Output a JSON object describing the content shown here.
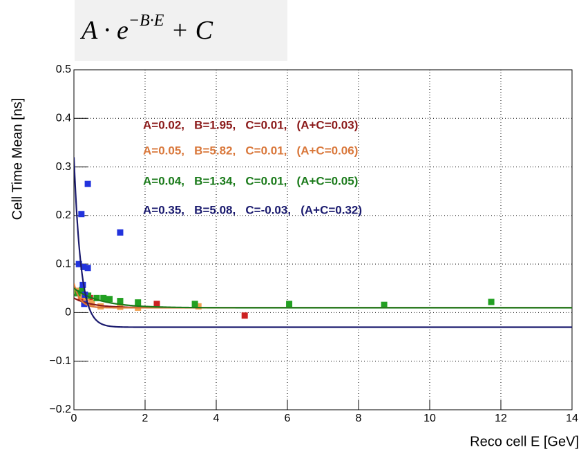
{
  "chart_data": {
    "type": "scatter",
    "formula": {
      "base": "A · e",
      "exponent": "−B·E",
      "tail": "+ C"
    },
    "xlabel": "Reco cell E [GeV]",
    "ylabel": "Cell Time Mean [ns]",
    "xlim": [
      0,
      14
    ],
    "xticks": [
      0,
      2,
      4,
      6,
      8,
      10,
      12,
      14
    ],
    "ylim": [
      -0.2,
      0.5
    ],
    "yticks": [
      {
        "value": -0.2,
        "label": "−0.2"
      },
      {
        "value": -0.1,
        "label": "−0.1"
      },
      0,
      0.1,
      0.2,
      0.3,
      0.4,
      0.5
    ],
    "grid": true,
    "series": [
      {
        "color": "#cc2222",
        "curve_color": "#8b1a1a",
        "x": [
          0.2,
          0.3,
          0.45,
          2.33,
          4.8
        ],
        "values": [
          0.03,
          0.025,
          0.03,
          0.018,
          -0.006
        ],
        "fit": {
          "A": 0.02,
          "B": 1.95,
          "C": 0.01
        },
        "annotation": "A=0.02,   B=1.95,   C=0.01,   (A+C=0.03)"
      },
      {
        "color": "#f0a050",
        "curve_color": "#d9773a",
        "x": [
          0.05,
          0.12,
          0.2,
          0.35,
          0.5,
          0.75,
          1.3,
          1.8,
          3.5
        ],
        "values": [
          0.045,
          0.04,
          0.035,
          0.03,
          0.02,
          0.013,
          0.012,
          0.01,
          0.013
        ],
        "fit": {
          "A": 0.05,
          "B": 5.82,
          "C": 0.01
        },
        "annotation": "A=0.05,   B=5.82,   C=0.01,   (A+C=0.06)"
      },
      {
        "color": "#22a022",
        "curve_color": "#1a7a1a",
        "x": [
          0.1,
          0.23,
          0.4,
          0.64,
          0.83,
          1.0,
          1.3,
          1.8,
          3.4,
          6.05,
          8.72,
          11.73
        ],
        "values": [
          0.04,
          0.047,
          0.035,
          0.03,
          0.03,
          0.028,
          0.024,
          0.021,
          0.018,
          0.018,
          0.016,
          0.022
        ],
        "fit": {
          "A": 0.04,
          "B": 1.34,
          "C": 0.01
        },
        "annotation": "A=0.04,   B=1.34,   C=0.01,   (A+C=0.05)"
      },
      {
        "color": "#2233dd",
        "curve_color": "#1a1a6e",
        "x": [
          0.14,
          0.21,
          0.39,
          0.27,
          0.39,
          0.25,
          0.31,
          0.29,
          1.3
        ],
        "values": [
          0.1,
          0.203,
          0.265,
          0.094,
          0.092,
          0.057,
          0.037,
          0.018,
          0.165
        ],
        "fit": {
          "A": 0.35,
          "B": 5.08,
          "C": -0.03
        },
        "annotation": "A=0.35,   B=5.08,   C=-0.03,   (A+C=0.32)"
      }
    ]
  }
}
